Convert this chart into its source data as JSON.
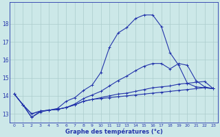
{
  "title": "Graphe des températures (°c)",
  "bg_color": "#cce8e8",
  "grid_color": "#aacccc",
  "line_color": "#2233aa",
  "ylim": [
    12.5,
    19.2
  ],
  "yticks": [
    13,
    14,
    15,
    16,
    17,
    18
  ],
  "xlim": [
    -0.5,
    23.5
  ],
  "curve1_y": [
    14.1,
    13.5,
    12.8,
    13.1,
    13.2,
    13.3,
    13.7,
    13.9,
    14.3,
    14.6,
    15.3,
    16.7,
    17.5,
    17.8,
    18.3,
    18.5,
    18.5,
    17.85,
    16.4,
    15.7,
    14.7,
    14.5,
    14.45,
    14.4
  ],
  "curve2_y": [
    14.1,
    13.5,
    12.8,
    13.15,
    13.2,
    13.25,
    13.35,
    13.55,
    13.85,
    14.05,
    14.25,
    14.55,
    14.85,
    15.1,
    15.4,
    15.65,
    15.8,
    15.8,
    15.5,
    15.8,
    15.7,
    14.85,
    14.5,
    14.4
  ],
  "curve3_y": [
    14.1,
    13.5,
    13.0,
    13.15,
    13.2,
    13.25,
    13.35,
    13.5,
    13.7,
    13.8,
    13.9,
    14.0,
    14.1,
    14.15,
    14.25,
    14.35,
    14.45,
    14.5,
    14.55,
    14.65,
    14.7,
    14.75,
    14.8,
    14.4
  ],
  "curve4_y": [
    14.1,
    13.5,
    13.0,
    13.15,
    13.2,
    13.25,
    13.35,
    13.5,
    13.7,
    13.8,
    13.85,
    13.9,
    13.95,
    14.0,
    14.05,
    14.1,
    14.15,
    14.2,
    14.25,
    14.3,
    14.35,
    14.4,
    14.45,
    14.4
  ]
}
